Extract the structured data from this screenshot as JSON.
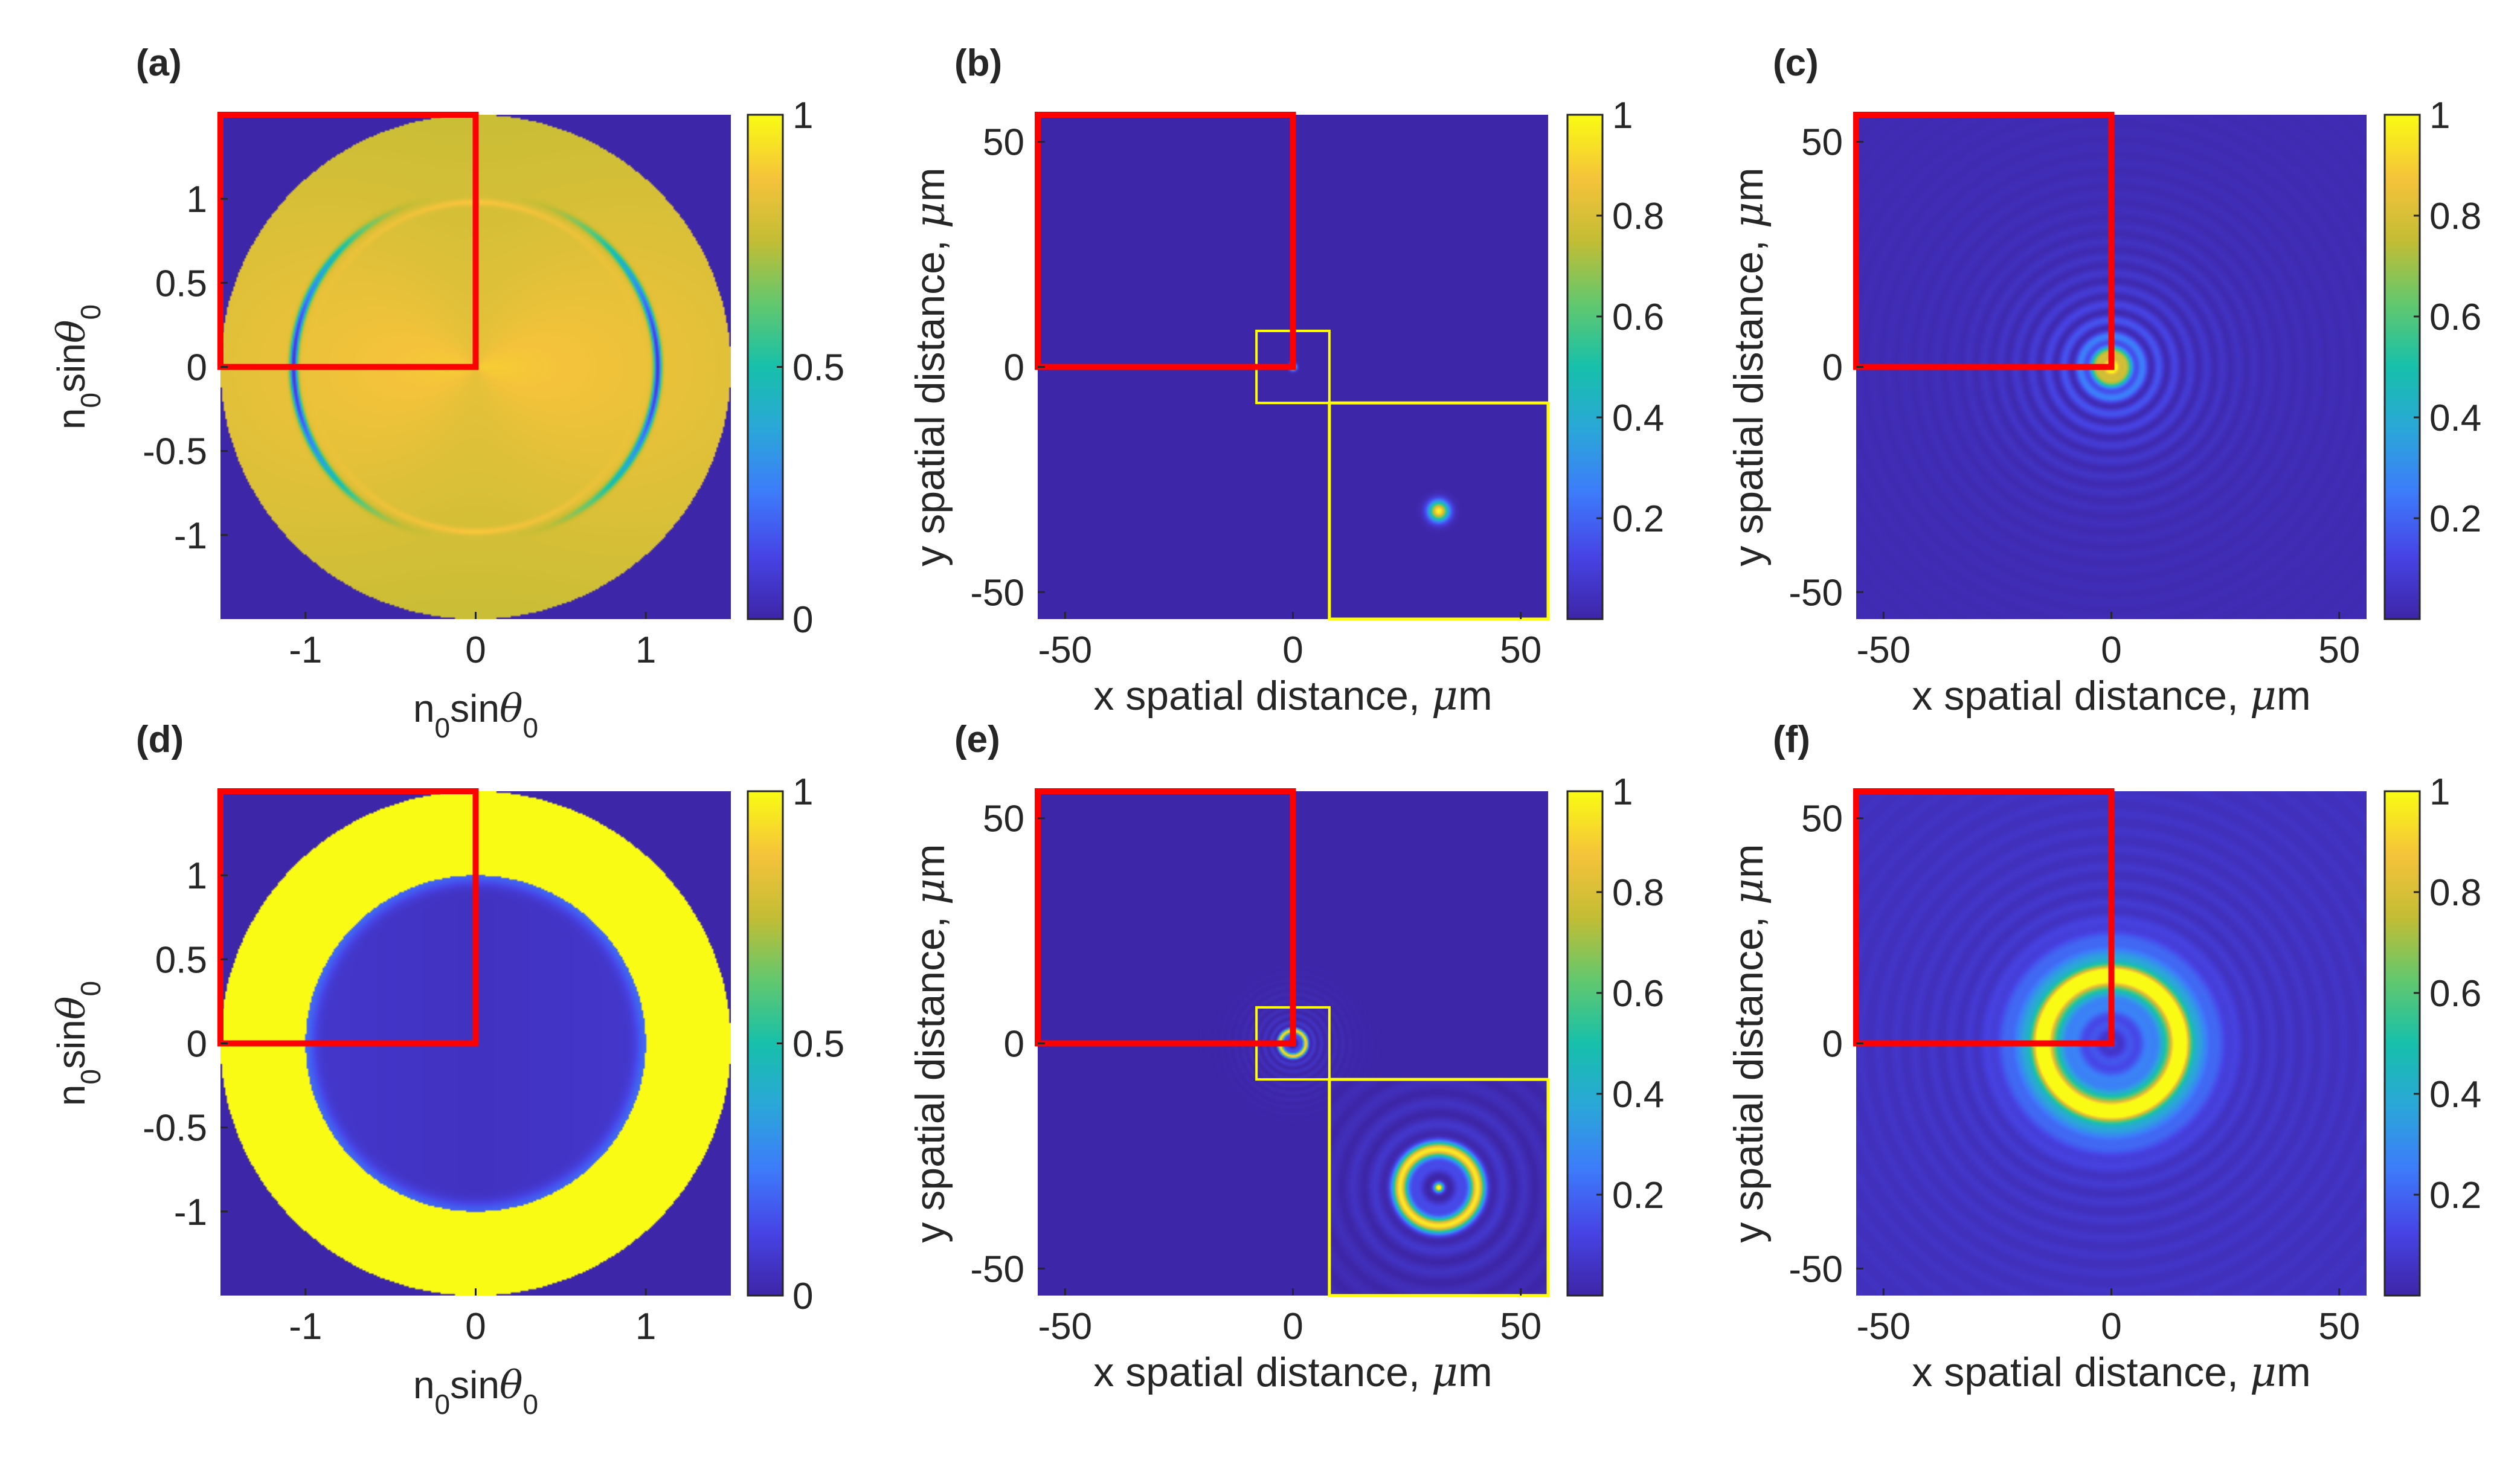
{
  "figure": {
    "colors": {
      "parula_stops": [
        "#3e26a8",
        "#4744e6",
        "#3d7cfb",
        "#2ba7d9",
        "#17c0ab",
        "#62c86f",
        "#c3bd35",
        "#f5c33b",
        "#f9fb15"
      ],
      "red_box": "#ff0000",
      "inset_box": "#ffff00",
      "axis": "#262626"
    },
    "ang_label_n": "n",
    "ang_label_sub": "0",
    "ang_label_sin": "sin",
    "ang_label_theta": "θ",
    "sp_x_label": "x spatial distance, ",
    "sp_y_label": "y spatial distance, ",
    "mu_symbol": "μ",
    "unit_m": "m"
  },
  "chart_data": [
    {
      "id": "a",
      "panel_label": "(a)",
      "type": "heatmap",
      "map": "angular-ring-dip",
      "xlabel": "n0sinθ0",
      "ylabel": "n0sinθ0",
      "xlim": [
        -1.5,
        1.5
      ],
      "ylim": [
        -1.5,
        1.5
      ],
      "xticks": [
        -1,
        0,
        1
      ],
      "xtick_labels": [
        "-1",
        "0",
        "1"
      ],
      "yticks": [
        1,
        0.5,
        0,
        -0.5,
        -1
      ],
      "ytick_labels": [
        "1",
        "0.5",
        "0",
        "-0.5",
        "-1"
      ],
      "clim": [
        0,
        1
      ],
      "cticks": [
        1,
        0.5,
        0
      ],
      "ctick_labels": [
        "1",
        "0.5",
        "0"
      ],
      "red_box": {
        "x": [
          -1.5,
          0
        ],
        "y": [
          0,
          1.5
        ]
      }
    },
    {
      "id": "b",
      "panel_label": "(b)",
      "type": "heatmap",
      "map": "spatial-point",
      "xlabel": "x spatial distance, μm",
      "ylabel": "y spatial distance, μm",
      "xlim": [
        -56,
        56
      ],
      "ylim": [
        -56,
        56
      ],
      "xticks": [
        -50,
        0,
        50
      ],
      "xtick_labels": [
        "-50",
        "0",
        "50"
      ],
      "yticks": [
        50,
        0,
        -50
      ],
      "ytick_labels": [
        "50",
        "0",
        "-50"
      ],
      "clim": [
        0,
        1
      ],
      "cticks": [
        1,
        0.8,
        0.6,
        0.4,
        0.2
      ],
      "ctick_labels": [
        "1",
        "0.8",
        "0.6",
        "0.4",
        "0.2"
      ],
      "red_box": {
        "x": [
          -56,
          0
        ],
        "y": [
          0,
          56
        ]
      },
      "inset_region": {
        "x": [
          -8,
          8
        ],
        "y": [
          -8,
          8
        ]
      },
      "inset": {
        "x": [
          8,
          56
        ],
        "y": [
          -56,
          -8
        ]
      }
    },
    {
      "id": "c",
      "panel_label": "(c)",
      "type": "heatmap",
      "map": "spatial-airy",
      "xlabel": "x spatial distance, μm",
      "ylabel": "y spatial distance, μm",
      "xlim": [
        -56,
        56
      ],
      "ylim": [
        -56,
        56
      ],
      "xticks": [
        -50,
        0,
        50
      ],
      "xtick_labels": [
        "-50",
        "0",
        "50"
      ],
      "yticks": [
        50,
        0,
        -50
      ],
      "ytick_labels": [
        "50",
        "0",
        "-50"
      ],
      "clim": [
        0,
        1
      ],
      "cticks": [
        1,
        0.8,
        0.6,
        0.4,
        0.2
      ],
      "ctick_labels": [
        "1",
        "0.8",
        "0.6",
        "0.4",
        "0.2"
      ],
      "red_box": {
        "x": [
          -56,
          0
        ],
        "y": [
          0,
          56
        ]
      }
    },
    {
      "id": "d",
      "panel_label": "(d)",
      "type": "heatmap",
      "map": "angular-annulus",
      "xlabel": "n0sinθ0",
      "ylabel": "n0sinθ0",
      "xlim": [
        -1.5,
        1.5
      ],
      "ylim": [
        -1.5,
        1.5
      ],
      "xticks": [
        -1,
        0,
        1
      ],
      "xtick_labels": [
        "-1",
        "0",
        "1"
      ],
      "yticks": [
        1,
        0.5,
        0,
        -0.5,
        -1
      ],
      "ytick_labels": [
        "1",
        "0.5",
        "0",
        "-0.5",
        "-1"
      ],
      "clim": [
        0,
        1
      ],
      "cticks": [
        1,
        0.5,
        0
      ],
      "ctick_labels": [
        "1",
        "0.5",
        "0"
      ],
      "red_box": {
        "x": [
          -1.5,
          0
        ],
        "y": [
          0,
          1.5
        ]
      }
    },
    {
      "id": "e",
      "panel_label": "(e)",
      "type": "heatmap",
      "map": "spatial-point-ring",
      "xlabel": "x spatial distance, μm",
      "ylabel": "y spatial distance, μm",
      "xlim": [
        -56,
        56
      ],
      "ylim": [
        -56,
        56
      ],
      "xticks": [
        -50,
        0,
        50
      ],
      "xtick_labels": [
        "-50",
        "0",
        "50"
      ],
      "yticks": [
        50,
        0,
        -50
      ],
      "ytick_labels": [
        "50",
        "0",
        "-50"
      ],
      "clim": [
        0,
        1
      ],
      "cticks": [
        1,
        0.8,
        0.6,
        0.4,
        0.2
      ],
      "ctick_labels": [
        "1",
        "0.8",
        "0.6",
        "0.4",
        "0.2"
      ],
      "red_box": {
        "x": [
          -56,
          0
        ],
        "y": [
          0,
          56
        ]
      },
      "inset_region": {
        "x": [
          -8,
          8
        ],
        "y": [
          -8,
          8
        ]
      },
      "inset": {
        "x": [
          8,
          56
        ],
        "y": [
          -56,
          -8
        ]
      }
    },
    {
      "id": "f",
      "panel_label": "(f)",
      "type": "heatmap",
      "map": "spatial-ring",
      "xlabel": "x spatial distance, μm",
      "ylabel": "y spatial distance, μm",
      "xlim": [
        -56,
        56
      ],
      "ylim": [
        -56,
        56
      ],
      "xticks": [
        -50,
        0,
        50
      ],
      "xtick_labels": [
        "-50",
        "0",
        "50"
      ],
      "yticks": [
        50,
        0,
        -50
      ],
      "ytick_labels": [
        "50",
        "0",
        "-50"
      ],
      "clim": [
        0,
        1
      ],
      "cticks": [
        1,
        0.8,
        0.6,
        0.4,
        0.2
      ],
      "ctick_labels": [
        "1",
        "0.8",
        "0.6",
        "0.4",
        "0.2"
      ],
      "red_box": {
        "x": [
          -56,
          0
        ],
        "y": [
          0,
          56
        ]
      }
    }
  ]
}
